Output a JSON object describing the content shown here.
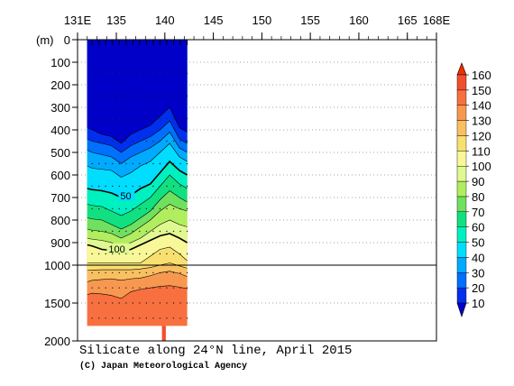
{
  "chart_data": {
    "type": "heatmap",
    "title": "Silicate along 24°N line, April 2015",
    "credit": "(C) Japan Meteorological Agency",
    "x_axis": {
      "range": [
        131,
        168
      ],
      "ticks": [
        {
          "value": 131,
          "label": "131E"
        },
        {
          "value": 135,
          "label": "135"
        },
        {
          "value": 140,
          "label": "140"
        },
        {
          "value": 145,
          "label": "145"
        },
        {
          "value": 150,
          "label": "150"
        },
        {
          "value": 155,
          "label": "155"
        },
        {
          "value": 160,
          "label": "160"
        },
        {
          "value": 165,
          "label": "165"
        },
        {
          "value": 168,
          "label": "168E"
        }
      ]
    },
    "y_axis": {
      "unit_label": "(m)",
      "upper_range": [
        0,
        1000
      ],
      "lower_range": [
        1000,
        2000
      ],
      "ticks": [
        {
          "value": 0,
          "label": "0"
        },
        {
          "value": 100,
          "label": "100"
        },
        {
          "value": 200,
          "label": "200"
        },
        {
          "value": 300,
          "label": "300"
        },
        {
          "value": 400,
          "label": "400"
        },
        {
          "value": 500,
          "label": "500"
        },
        {
          "value": 600,
          "label": "600"
        },
        {
          "value": 700,
          "label": "700"
        },
        {
          "value": 800,
          "label": "800"
        },
        {
          "value": 900,
          "label": "900"
        },
        {
          "value": 1000,
          "label": "1000"
        },
        {
          "value": 1500,
          "label": "1500"
        },
        {
          "value": 2000,
          "label": "2000"
        }
      ]
    },
    "grid": true,
    "section": {
      "lon_start": 132.0,
      "lon_end": 142.3,
      "max_depth": 1800,
      "bottom_notch": {
        "lon_start": 139.7,
        "lon_end": 140.1,
        "depth": 2000
      },
      "station_lons": [
        132.5,
        133.2,
        133.9,
        134.6,
        135.3,
        136.0,
        136.7,
        137.4,
        138.1,
        138.8,
        139.5,
        140.2,
        140.9,
        141.6,
        142.3
      ],
      "isoline_lons": [
        132.0,
        132.5,
        133.5,
        134.5,
        135.5,
        136.5,
        137.5,
        138.5,
        139.5,
        140.5,
        141.5,
        142.3
      ],
      "isolines": [
        {
          "value": 10,
          "depths": [
            390,
            400,
            420,
            430,
            460,
            420,
            400,
            380,
            340,
            300,
            390,
            410
          ]
        },
        {
          "value": 20,
          "depths": [
            440,
            450,
            460,
            470,
            500,
            470,
            450,
            430,
            400,
            360,
            440,
            460
          ]
        },
        {
          "value": 30,
          "depths": [
            490,
            500,
            510,
            520,
            550,
            520,
            500,
            480,
            450,
            410,
            480,
            500
          ]
        },
        {
          "value": 40,
          "depths": [
            560,
            570,
            575,
            580,
            610,
            590,
            560,
            540,
            500,
            460,
            520,
            540
          ]
        },
        {
          "value": 50,
          "depths": [
            660,
            665,
            670,
            680,
            700,
            690,
            660,
            640,
            590,
            540,
            580,
            600
          ]
        },
        {
          "value": 60,
          "depths": [
            730,
            735,
            740,
            760,
            780,
            760,
            730,
            700,
            650,
            600,
            640,
            660
          ]
        },
        {
          "value": 70,
          "depths": [
            790,
            795,
            800,
            820,
            840,
            820,
            790,
            760,
            710,
            670,
            700,
            720
          ]
        },
        {
          "value": 80,
          "depths": [
            840,
            845,
            850,
            860,
            880,
            860,
            830,
            800,
            760,
            730,
            750,
            760
          ]
        },
        {
          "value": 90,
          "depths": [
            880,
            885,
            890,
            900,
            920,
            900,
            880,
            850,
            820,
            800,
            820,
            830
          ]
        },
        {
          "value": 100,
          "depths": [
            910,
            915,
            930,
            935,
            940,
            930,
            910,
            890,
            870,
            860,
            880,
            900
          ]
        },
        {
          "value": 110,
          "depths": [
            990,
            990,
            990,
            990,
            990,
            990,
            990,
            960,
            930,
            920,
            950,
            980
          ]
        },
        {
          "value": 120,
          "depths": [
            1070,
            1065,
            1060,
            1060,
            1060,
            1060,
            1050,
            1030,
            1000,
            990,
            1010,
            1040
          ]
        },
        {
          "value": 130,
          "depths": [
            1220,
            1200,
            1190,
            1180,
            1200,
            1180,
            1170,
            1140,
            1100,
            1080,
            1110,
            1150
          ]
        },
        {
          "value": 140,
          "depths": [
            1390,
            1370,
            1380,
            1400,
            1440,
            1350,
            1320,
            1300,
            1280,
            1270,
            1290,
            1310
          ]
        },
        {
          "value": 150,
          "depths": [
            1800,
            1800,
            1800,
            1800,
            1800,
            1800,
            1800,
            1800,
            1800,
            1800,
            1800,
            1800
          ]
        }
      ],
      "bold_isolines": [
        50,
        100
      ],
      "labels": [
        {
          "value": 50,
          "text": "50",
          "lon": 135.4,
          "depth": 700
        },
        {
          "value": 100,
          "text": "100",
          "lon": 134.2,
          "depth": 935
        }
      ]
    },
    "colorbar": {
      "levels": [
        10,
        20,
        30,
        40,
        50,
        60,
        70,
        80,
        90,
        100,
        110,
        120,
        130,
        140,
        150,
        160
      ],
      "colors": [
        "#0000c8",
        "#0030ee",
        "#0070ff",
        "#00aaff",
        "#00ddff",
        "#00f0c0",
        "#10e080",
        "#70e060",
        "#b0ee60",
        "#e0f890",
        "#f8f898",
        "#f8e070",
        "#f8c060",
        "#f89850",
        "#f87040",
        "#f05030",
        "#f03000"
      ],
      "labels": [
        "10",
        "20",
        "30",
        "40",
        "50",
        "60",
        "70",
        "80",
        "90",
        "100",
        "110",
        "120",
        "130",
        "140",
        "150",
        "160"
      ]
    }
  }
}
